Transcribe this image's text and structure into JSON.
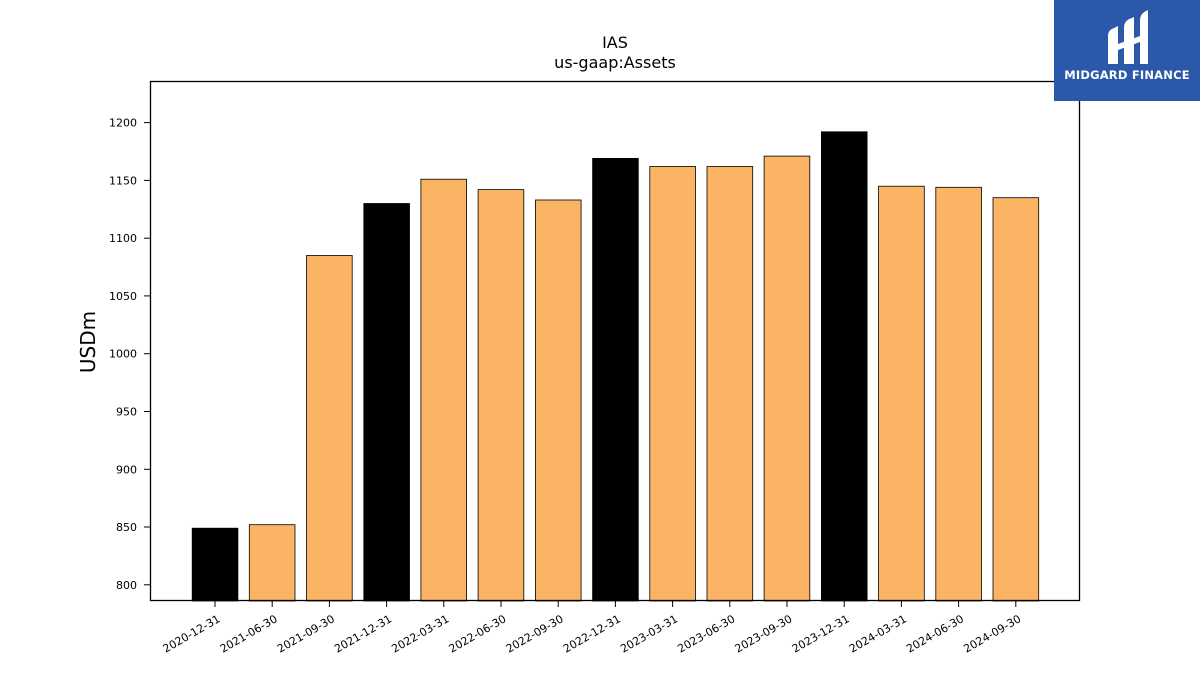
{
  "brand": {
    "name": "MIDGARD FINANCE",
    "background": "#2c58a9"
  },
  "chart_data": {
    "type": "bar",
    "title": "IAS",
    "subtitle": "us-gaap:Assets",
    "xlabel": "",
    "ylabel": "USDm",
    "categories": [
      "2020-12-31",
      "2021-06-30",
      "2021-09-30",
      "2021-12-31",
      "2022-03-31",
      "2022-06-30",
      "2022-09-30",
      "2022-12-31",
      "2023-03-31",
      "2023-06-30",
      "2023-09-30",
      "2023-12-31",
      "2024-03-31",
      "2024-06-30",
      "2024-09-30"
    ],
    "values": [
      849,
      852,
      1085,
      1130,
      1151,
      1142,
      1133,
      1169,
      1162,
      1162,
      1171,
      1192,
      1145,
      1144,
      1135
    ],
    "fiscal_year_end": [
      true,
      false,
      false,
      true,
      false,
      false,
      false,
      true,
      false,
      false,
      false,
      true,
      false,
      false,
      false
    ],
    "colors": {
      "year_end": "#000000",
      "quarter": "#fbb463",
      "edge": "#000000"
    },
    "ylim": [
      786,
      1236
    ],
    "yticks": [
      800,
      850,
      900,
      950,
      1000,
      1050,
      1100,
      1150,
      1200
    ],
    "grid": false,
    "legend": "none"
  }
}
